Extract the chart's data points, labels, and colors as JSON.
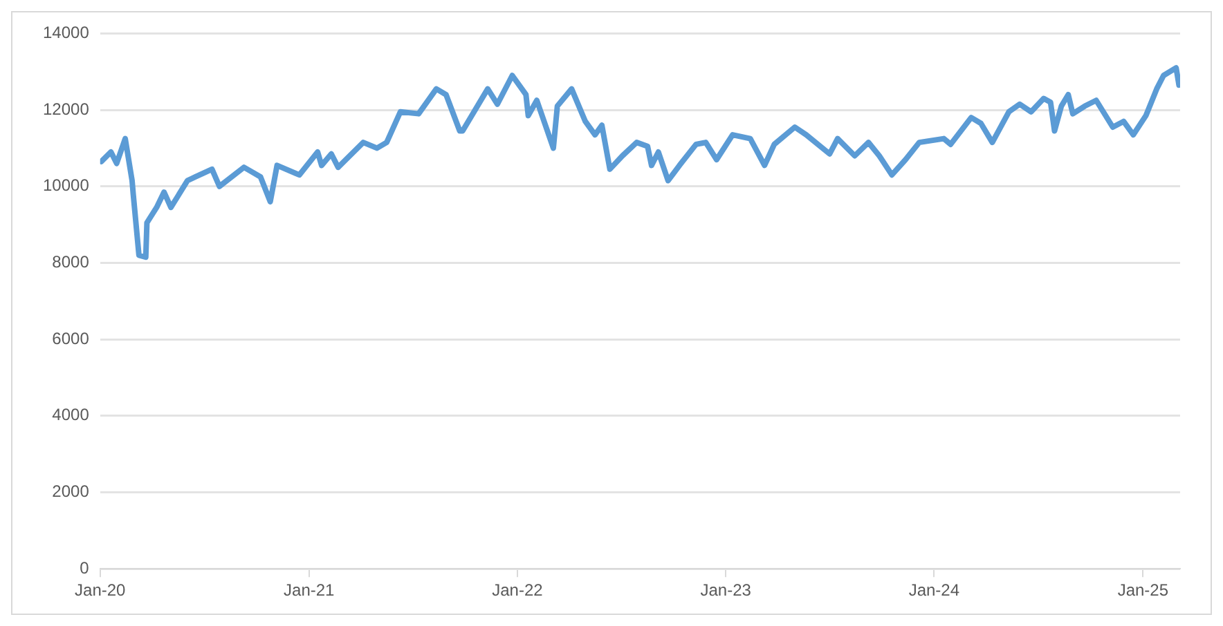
{
  "chart_data": {
    "type": "line",
    "x": [
      "2020-01-03",
      "2020-01-20",
      "2020-01-30",
      "2020-02-14",
      "2020-02-26",
      "2020-02-28",
      "2020-03-09",
      "2020-03-21",
      "2020-03-23",
      "2020-04-09",
      "2020-04-22",
      "2020-05-04",
      "2020-06-02",
      "2020-06-16",
      "2020-07-15",
      "2020-07-28",
      "2020-09-09",
      "2020-10-08",
      "2020-10-25",
      "2020-11-06",
      "2020-12-15",
      "2021-01-16",
      "2021-01-23",
      "2021-02-09",
      "2021-02-21",
      "2021-04-06",
      "2021-04-30",
      "2021-05-17",
      "2021-06-10",
      "2021-07-12",
      "2021-08-12",
      "2021-08-29",
      "2021-09-22",
      "2021-09-27",
      "2021-11-10",
      "2021-11-27",
      "2021-12-23",
      "2022-01-16",
      "2022-01-20",
      "2022-02-04",
      "2022-03-05",
      "2022-03-12",
      "2022-04-06",
      "2022-04-30",
      "2022-05-17",
      "2022-05-29",
      "2022-06-12",
      "2022-07-04",
      "2022-07-29",
      "2022-08-17",
      "2022-08-24",
      "2022-09-05",
      "2022-09-22",
      "2022-10-12",
      "2022-11-10",
      "2022-11-27",
      "2022-12-16",
      "2023-01-13",
      "2023-02-13",
      "2023-03-10",
      "2023-03-27",
      "2023-05-02",
      "2023-05-22",
      "2023-07-02",
      "2023-07-16",
      "2023-08-15",
      "2023-09-08",
      "2023-09-27",
      "2023-10-19",
      "2023-11-12",
      "2023-12-06",
      "2024-01-18",
      "2024-01-30",
      "2024-03-06",
      "2024-03-23",
      "2024-04-12",
      "2024-05-11",
      "2024-05-30",
      "2024-06-19",
      "2024-07-11",
      "2024-07-23",
      "2024-07-30",
      "2024-08-11",
      "2024-08-23",
      "2024-08-31",
      "2024-09-21",
      "2024-10-11",
      "2024-11-09",
      "2024-11-28",
      "2024-12-15",
      "2025-01-06",
      "2025-01-25",
      "2025-02-06",
      "2025-02-28",
      "2025-03-05"
    ],
    "series": [
      {
        "color": "#5b9bd5",
        "values": [
          10650,
          10900,
          10600,
          11250,
          10150,
          9800,
          8200,
          8150,
          9050,
          9450,
          9850,
          9450,
          10150,
          10250,
          10450,
          10000,
          10500,
          10250,
          9600,
          10550,
          10300,
          10900,
          10550,
          10850,
          10500,
          11150,
          11000,
          11150,
          11950,
          11900,
          12550,
          12400,
          11450,
          11450,
          12550,
          12150,
          12900,
          12400,
          11850,
          12250,
          11000,
          12100,
          12550,
          11700,
          11350,
          11600,
          10450,
          10800,
          11150,
          11050,
          10550,
          10900,
          10150,
          10550,
          11100,
          11150,
          10700,
          11350,
          11250,
          10550,
          11100,
          11550,
          11350,
          10850,
          11250,
          10800,
          11150,
          10800,
          10300,
          10700,
          11150,
          11250,
          11100,
          11800,
          11650,
          11150,
          11950,
          12150,
          11950,
          12300,
          12200,
          11450,
          12100,
          12400,
          11900,
          12100,
          12250,
          11550,
          11700,
          11350,
          11850,
          12550,
          12900,
          13100,
          12650
        ]
      }
    ],
    "xlim": [
      "2020-01-01",
      "2025-03-07"
    ],
    "xticks": [
      {
        "value": "2020-01-01",
        "label": "Jan-20"
      },
      {
        "value": "2021-01-01",
        "label": "Jan-21"
      },
      {
        "value": "2022-01-01",
        "label": "Jan-22"
      },
      {
        "value": "2023-01-01",
        "label": "Jan-23"
      },
      {
        "value": "2024-01-01",
        "label": "Jan-24"
      },
      {
        "value": "2025-01-01",
        "label": "Jan-25"
      }
    ],
    "ylim": [
      0,
      14000
    ],
    "yticks": [
      0,
      2000,
      4000,
      6000,
      8000,
      10000,
      12000,
      14000
    ],
    "grid": "y",
    "legend": false,
    "marker": "none",
    "line_style": "solid"
  }
}
